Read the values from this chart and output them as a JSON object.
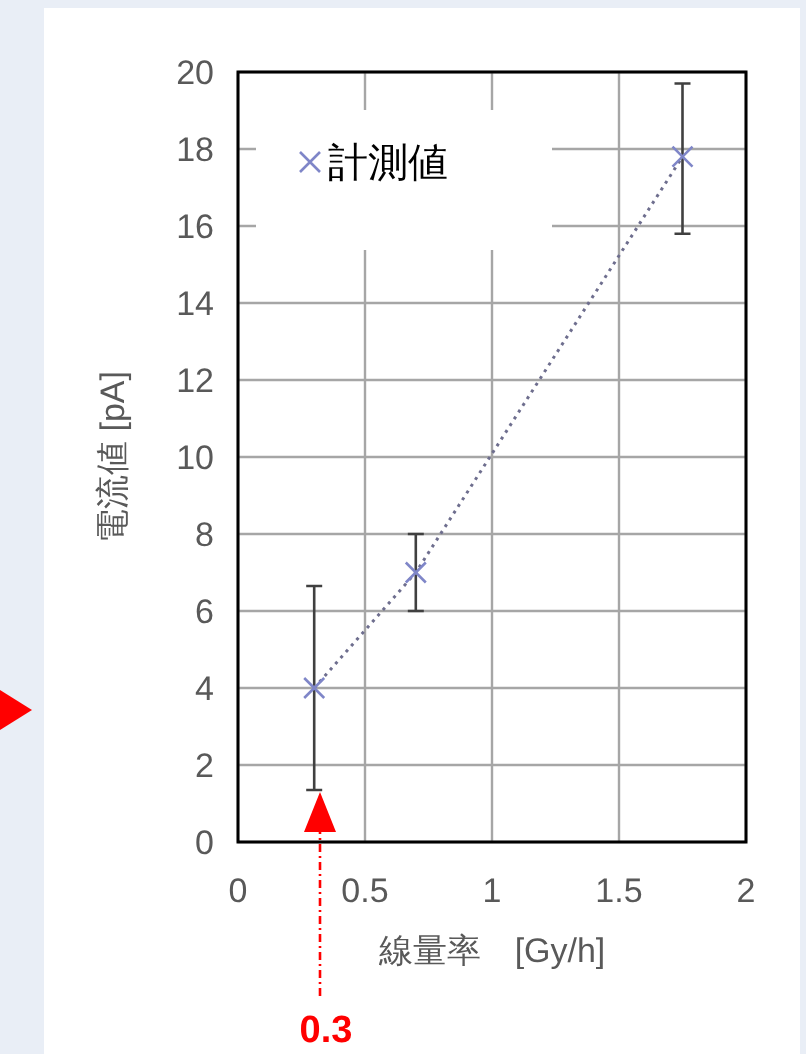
{
  "chart_data": {
    "type": "line",
    "xlabel": "線量率　[Gy/h]",
    "ylabel": "電流値 [pA]",
    "x": [
      0.3,
      0.7,
      1.75
    ],
    "series": [
      {
        "name": "計測値",
        "color": "#7f86c8",
        "values": [
          4.0,
          7.0,
          17.8
        ],
        "errors": [
          [
            1.35,
            6.65
          ],
          [
            6.0,
            8.0
          ],
          [
            15.8,
            19.7
          ]
        ]
      }
    ],
    "xlim": [
      0,
      2
    ],
    "xticks": [
      0,
      0.5,
      1,
      1.5,
      2
    ],
    "ylim": [
      0,
      20
    ],
    "yticks": [
      0,
      2,
      4,
      6,
      8,
      10,
      12,
      14,
      16,
      18,
      20
    ],
    "grid": true,
    "legend": "top left",
    "marker": "cross",
    "line_style": "dotted",
    "annotations": [
      "0.3"
    ]
  }
}
